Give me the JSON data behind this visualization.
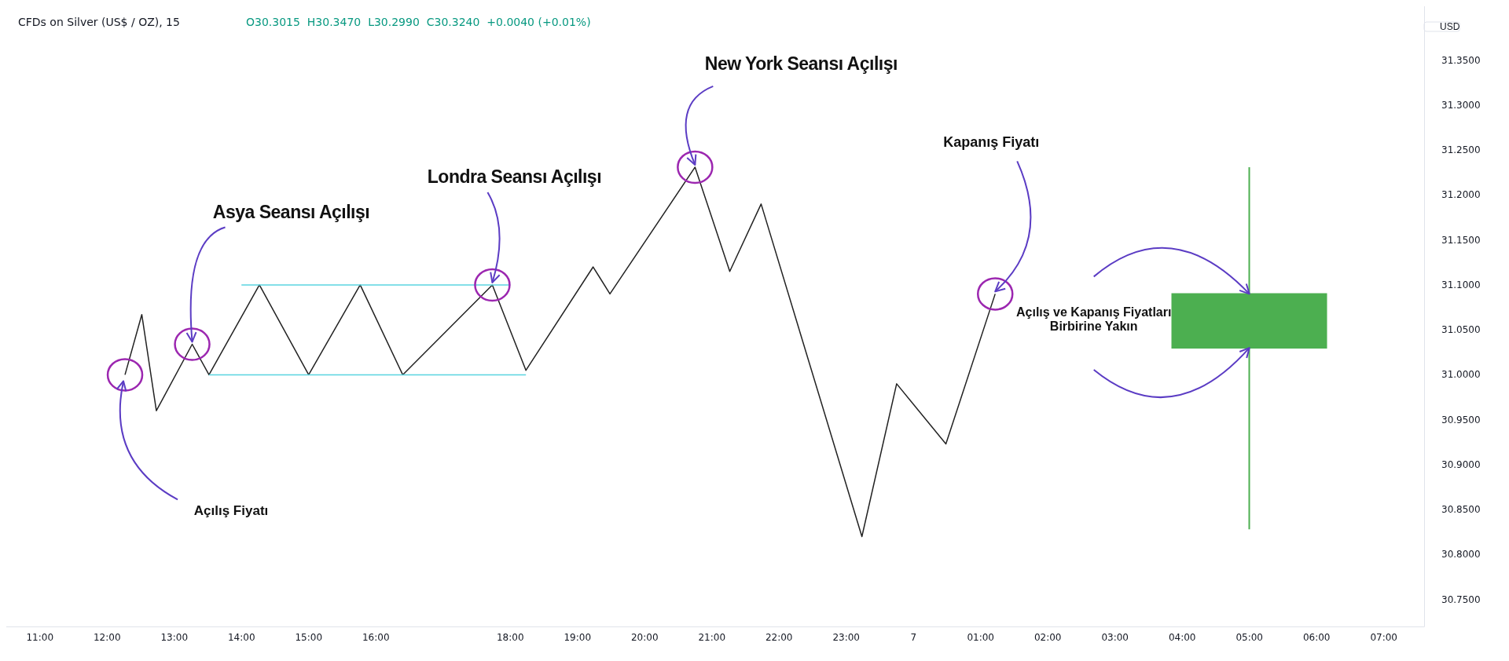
{
  "chart_data": {
    "type": "line",
    "title": "CFDs on Silver (US$ / OZ), 15",
    "subtitle": "O30.3015  H30.3470  L30.2990  C30.3240  +0.0040 (+0.01%)",
    "ylabel": "USD",
    "xlim": [
      "--11-06T10:30",
      "--11-07T07:36"
    ],
    "xticks": [
      {
        "value": "--11-06T11:00",
        "label": "11:00"
      },
      {
        "value": "--11-06T12:00",
        "label": "12:00"
      },
      {
        "value": "--11-06T13:00",
        "label": "13:00"
      },
      {
        "value": "--11-06T14:00",
        "label": "14:00"
      },
      {
        "value": "--11-06T15:00",
        "label": "15:00"
      },
      {
        "value": "--11-06T16:00",
        "label": "16:00"
      },
      {
        "value": "--11-06T18:00",
        "label": "18:00"
      },
      {
        "value": "--11-06T19:00",
        "label": "19:00"
      },
      {
        "value": "--11-06T20:00",
        "label": "20:00"
      },
      {
        "value": "--11-06T21:00",
        "label": "21:00"
      },
      {
        "value": "--11-06T22:00",
        "label": "22:00"
      },
      {
        "value": "--11-06T23:00",
        "label": "23:00"
      },
      {
        "value": "--11-07T00:00",
        "label": "7"
      },
      {
        "value": "--11-07T01:00",
        "label": "01:00"
      },
      {
        "value": "--11-07T02:00",
        "label": "02:00"
      },
      {
        "value": "--11-07T03:00",
        "label": "03:00"
      },
      {
        "value": "--11-07T04:00",
        "label": "04:00"
      },
      {
        "value": "--11-07T05:00",
        "label": "05:00"
      },
      {
        "value": "--11-07T06:00",
        "label": "06:00"
      },
      {
        "value": "--11-07T07:00",
        "label": "07:00"
      }
    ],
    "ylim": [
      30.72,
      31.41
    ],
    "yticks": [
      {
        "value": 30.75,
        "label": "30.7500"
      },
      {
        "value": 30.8,
        "label": "30.8000"
      },
      {
        "value": 30.85,
        "label": "30.8500"
      },
      {
        "value": 30.9,
        "label": "30.9000"
      },
      {
        "value": 30.95,
        "label": "30.9500"
      },
      {
        "value": 31,
        "label": "31.0000"
      },
      {
        "value": 31.05,
        "label": "31.0500"
      },
      {
        "value": 31.1,
        "label": "31.1000"
      },
      {
        "value": 31.15,
        "label": "31.1500"
      },
      {
        "value": 31.2,
        "label": "31.2000"
      },
      {
        "value": 31.25,
        "label": "31.2500"
      },
      {
        "value": 31.3,
        "label": "31.3000"
      },
      {
        "value": 31.35,
        "label": "31.3500"
      }
    ],
    "grid": false,
    "marker": "none",
    "series": [
      {
        "color": "#222222",
        "x": [
          "--11-06T12:16",
          "--11-06T12:31",
          "--11-06T12:44",
          "--11-06T13:16",
          "--11-06T13:31",
          "--11-06T14:16",
          "--11-06T15:00",
          "--11-06T15:46",
          "--11-06T16:24",
          "--11-06T17:44",
          "--11-06T18:14",
          "--11-06T19:14",
          "--11-06T19:29",
          "--11-06T20:45",
          "--11-06T21:16",
          "--11-06T21:44",
          "--11-06T23:14",
          "--11-06T23:45",
          "--11-07T00:29",
          "--11-07T01:13"
        ],
        "values": [
          31.0,
          31.067,
          30.96,
          31.034,
          31.0,
          31.1,
          31.0,
          31.1,
          31.0,
          31.1,
          31.005,
          31.12,
          31.09,
          31.231,
          31.115,
          31.19,
          30.82,
          30.99,
          30.923,
          31.09
        ]
      },
      {
        "color": "#5ad4e0",
        "x": [
          "--11-06T14:00",
          "--11-06T18:00"
        ],
        "values": [
          31.1,
          31.1
        ]
      },
      {
        "color": "#5ad4e0",
        "x": [
          "--11-06T13:31",
          "--11-06T18:14"
        ],
        "values": [
          31.0,
          31.0
        ]
      },
      {
        "type": "candlestick",
        "color": "#4caf50",
        "x": [
          "--11-07T05:00"
        ],
        "ohlc": [
          [
            31.03,
            31.231,
            30.828,
            31.09
          ]
        ]
      }
    ],
    "annotations": [
      {
        "text": "Açılış Fiyatı",
        "x": "--11-06T12:16",
        "y": 31.0
      },
      {
        "text": "Asya Seansı Açılışı",
        "x": "--11-06T13:16",
        "y": 31.034
      },
      {
        "text": "Londra Seansı Açılışı",
        "x": "--11-06T17:44",
        "y": 31.1
      },
      {
        "text": "New York Seansı Açılışı",
        "x": "--11-06T20:45",
        "y": 31.231
      },
      {
        "text": "Kapanış Fiyatı",
        "x": "--11-07T01:13",
        "y": 31.09
      },
      "Açılış ve Kapanış Fiyatları Birbirine Yakın"
    ]
  }
}
